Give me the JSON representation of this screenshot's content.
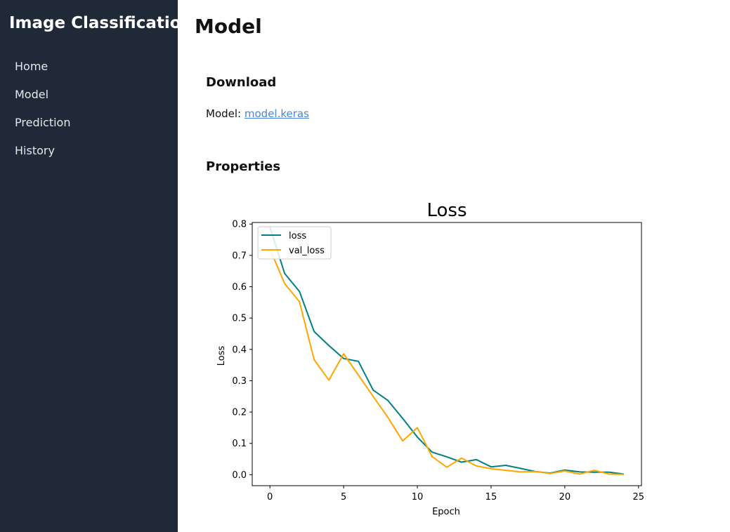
{
  "sidebar": {
    "title": "Image Classification",
    "items": [
      {
        "label": "Home"
      },
      {
        "label": "Model"
      },
      {
        "label": "Prediction"
      },
      {
        "label": "History"
      }
    ]
  },
  "main": {
    "title": "Model",
    "download": {
      "heading": "Download",
      "label": "Model:",
      "link_text": "model.keras"
    },
    "properties": {
      "heading": "Properties"
    }
  },
  "chart_data": {
    "type": "line",
    "title": "Loss",
    "xlabel": "Epoch",
    "ylabel": "Loss",
    "xlim": [
      -1.2,
      25.2
    ],
    "ylim": [
      -0.035,
      0.805
    ],
    "xticks": [
      0,
      5,
      10,
      15,
      20,
      25
    ],
    "yticks": [
      0.0,
      0.1,
      0.2,
      0.3,
      0.4,
      0.5,
      0.6,
      0.7,
      0.8
    ],
    "ytick_labels": [
      "0.0",
      "0.1",
      "0.2",
      "0.3",
      "0.4",
      "0.5",
      "0.6",
      "0.7",
      "0.8"
    ],
    "grid": false,
    "legend_position": "top-left",
    "x": [
      0,
      1,
      2,
      3,
      4,
      5,
      6,
      7,
      8,
      9,
      10,
      11,
      12,
      13,
      14,
      15,
      16,
      17,
      18,
      19,
      20,
      21,
      22,
      23,
      24
    ],
    "series": [
      {
        "name": "loss",
        "color": "#008080",
        "values": [
          0.79,
          0.642,
          0.585,
          0.457,
          0.412,
          0.371,
          0.362,
          0.27,
          0.237,
          0.18,
          0.12,
          0.072,
          0.057,
          0.04,
          0.048,
          0.025,
          0.03,
          0.02,
          0.01,
          0.005,
          0.015,
          0.009,
          0.008,
          0.008,
          0.002
        ]
      },
      {
        "name": "val_loss",
        "color": "#ffa500",
        "values": [
          0.72,
          0.61,
          0.552,
          0.367,
          0.302,
          0.386,
          0.318,
          0.25,
          0.183,
          0.108,
          0.15,
          0.058,
          0.024,
          0.053,
          0.028,
          0.019,
          0.014,
          0.009,
          0.01,
          0.004,
          0.012,
          0.002,
          0.014,
          0.002,
          0.001
        ]
      }
    ]
  }
}
